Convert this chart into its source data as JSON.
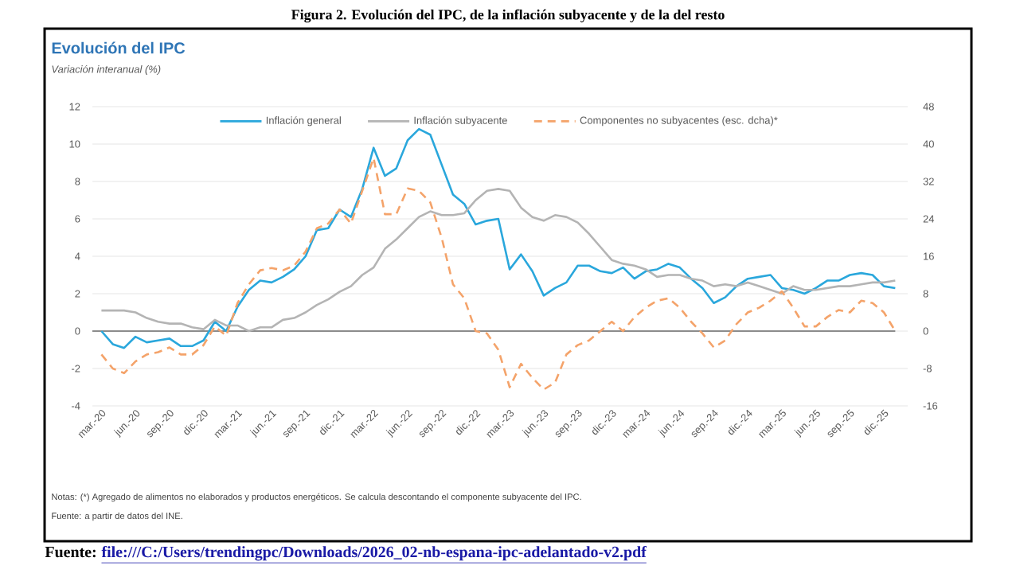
{
  "chart_data": {
    "type": "line",
    "title": "Figura 2. Evolución del IPC, de la inflación subyacente y de la del resto",
    "subtitle": "Evolución del IPC",
    "ylabel": "Variación interanual (%)",
    "categories": [
      "mar.-20",
      null,
      null,
      "jun.-20",
      null,
      null,
      "sep.-20",
      null,
      null,
      "dic.-20",
      null,
      null,
      "mar.-21",
      null,
      null,
      "jun.-21",
      null,
      null,
      "sep.-21",
      null,
      null,
      "dic.-21",
      null,
      null,
      "mar.-22",
      null,
      null,
      "jun.-22",
      null,
      null,
      "sep.-22",
      null,
      null,
      "dic.-22",
      null,
      null,
      "mar.-23",
      null,
      null,
      "jun.-23",
      null,
      null,
      "sep.-23",
      null,
      null,
      "dic.-23",
      null,
      null,
      "mar.-24",
      null,
      null,
      "jun.-24",
      null,
      null,
      "sep.-24",
      null,
      null,
      "dic.-24",
      null,
      null,
      "mar.-25",
      null,
      null,
      "jun.-25",
      null,
      null,
      "sep.-25",
      null,
      null,
      "dic.-25",
      null
    ],
    "series": [
      {
        "name": "Inflación general",
        "color": "#2aa7dc",
        "line_style": "solid",
        "values": [
          0.0,
          -0.7,
          -0.9,
          -0.3,
          -0.6,
          -0.5,
          -0.4,
          -0.8,
          -0.8,
          -0.5,
          0.5,
          0.0,
          1.3,
          2.2,
          2.7,
          2.6,
          2.9,
          3.3,
          4.0,
          5.4,
          5.5,
          6.5,
          6.1,
          7.6,
          9.8,
          8.3,
          8.7,
          10.2,
          10.8,
          10.5,
          8.9,
          7.3,
          6.8,
          5.7,
          5.9,
          6.0,
          3.3,
          4.1,
          3.2,
          1.9,
          2.3,
          2.6,
          3.5,
          3.5,
          3.2,
          3.1,
          3.4,
          2.8,
          3.2,
          3.3,
          3.6,
          3.4,
          2.8,
          2.3,
          1.5,
          1.8,
          2.4,
          2.8,
          2.9,
          3.0,
          2.3,
          2.2,
          2.0,
          2.3,
          2.7,
          2.7,
          3.0,
          3.1,
          3.0,
          2.4,
          2.3
        ]
      },
      {
        "name": "Inflación subyacente",
        "color": "#b4b4b4",
        "line_style": "solid",
        "values": [
          1.1,
          1.1,
          1.1,
          1.0,
          0.7,
          0.5,
          0.4,
          0.4,
          0.2,
          0.1,
          0.6,
          0.3,
          0.3,
          0.0,
          0.2,
          0.2,
          0.6,
          0.7,
          1.0,
          1.4,
          1.7,
          2.1,
          2.4,
          3.0,
          3.4,
          4.4,
          4.9,
          5.5,
          6.1,
          6.4,
          6.2,
          6.2,
          6.3,
          7.0,
          7.5,
          7.6,
          7.5,
          6.6,
          6.1,
          5.9,
          6.2,
          6.1,
          5.8,
          5.2,
          4.5,
          3.8,
          3.6,
          3.5,
          3.3,
          2.9,
          3.0,
          3.0,
          2.8,
          2.7,
          2.4,
          2.5,
          2.4,
          2.6,
          2.4,
          2.2,
          2.0,
          2.4,
          2.2,
          2.2,
          2.3,
          2.4,
          2.4,
          2.5,
          2.6,
          2.6,
          2.7
        ]
      },
      {
        "name": "Componentes no subyacentes (esc. dcha)*",
        "color": "#f4a36a",
        "line_style": "dashed",
        "axis": "y2",
        "values": [
          -5,
          -8,
          -9,
          -6.5,
          -5,
          -4.5,
          -3.5,
          -5,
          -5,
          -3,
          1,
          -1,
          6,
          10,
          13,
          13.5,
          13,
          14,
          17,
          22,
          23,
          26,
          23,
          30,
          37,
          25,
          25,
          30.5,
          30,
          27.5,
          20,
          10,
          7,
          0,
          -0.5,
          -4,
          -12,
          -7,
          -10,
          -12.5,
          -11,
          -5,
          -3,
          -2,
          0,
          2,
          0,
          3,
          5,
          6.5,
          7,
          5,
          2,
          -0.5,
          -3.5,
          -2,
          1.5,
          4,
          5,
          6.5,
          8.5,
          5,
          1,
          1,
          3,
          4.5,
          4,
          6.5,
          6,
          4,
          0
        ]
      }
    ],
    "ylim": [
      -4,
      12
    ],
    "yticks": [
      -4,
      -2,
      0,
      2,
      4,
      6,
      8,
      10,
      12
    ],
    "y2lim": [
      -16,
      48
    ],
    "y2ticks": [
      -16,
      -8,
      0,
      8,
      16,
      24,
      32,
      40,
      48
    ],
    "grid": "y",
    "legend": "top",
    "marker": "none",
    "ref_lines": [
      {
        "axis": "y",
        "value": 0,
        "color": "#8c8c8c"
      }
    ],
    "annotations": [
      "Notas: (*) Agregado de alimentos no elaborados y productos energéticos. Se calcula descontando el componente subyacente del IPC.",
      "Fuente: a partir de datos del INE.",
      "Fuente:",
      "file:///C:/Users/trendingpc/Downloads/2026_02-nb-espana-ipc-adelantado-v2.pdf"
    ]
  }
}
